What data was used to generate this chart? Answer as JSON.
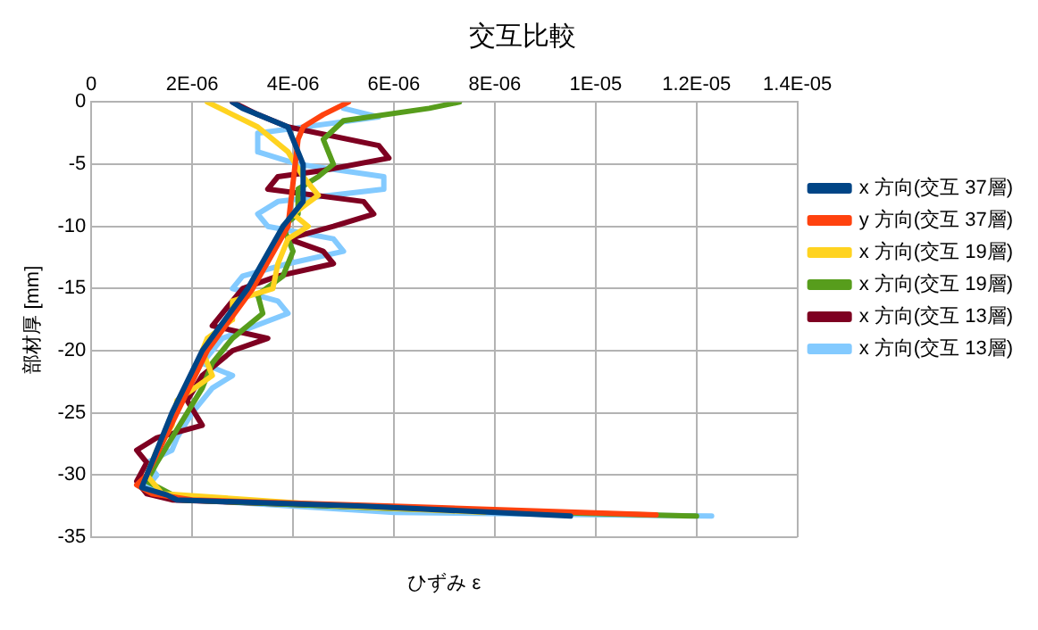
{
  "chart_data": {
    "type": "line",
    "title": "交互比較",
    "xlabel": "ひずみ ε",
    "ylabel": "部材厚 [mm]",
    "xlim": [
      0,
      1.4e-05
    ],
    "xticks": [
      0,
      {
        "value": 2e-06,
        "label": "2E-06"
      },
      {
        "value": 4e-06,
        "label": "4E-06"
      },
      {
        "value": 6e-06,
        "label": "6E-06"
      },
      {
        "value": 8e-06,
        "label": "8E-06"
      },
      {
        "value": 1e-05,
        "label": "1E-05"
      },
      {
        "value": 1.2e-05,
        "label": "1.2E-05"
      },
      {
        "value": 1.4e-05,
        "label": "1.4E-05"
      }
    ],
    "ylim": [
      -35,
      0
    ],
    "yticks": [
      -35,
      -30,
      -25,
      -20,
      -15,
      -10,
      -5,
      0
    ],
    "grid": true,
    "legend": "right",
    "marker": "none",
    "line_style": "solid",
    "series": [
      {
        "name": "x 方向(交互 37層)",
        "color": "#004586",
        "x": [
          2.8e-06,
          3e-06,
          3.9e-06,
          4.2e-06,
          4.2e-06,
          3.8e-06,
          3.1e-06,
          2.2e-06,
          1.6e-06,
          1.1e-06,
          1e-06,
          1.5e-06,
          1.7e-06,
          5.4e-06,
          9.5e-06
        ],
        "values": [
          0,
          -0.5,
          -2,
          -5,
          -8,
          -10,
          -15,
          -20,
          -25,
          -30,
          -31,
          -31.6,
          -32,
          -32.5,
          -33.3
        ]
      },
      {
        "name": "y 方向(交互 37層)",
        "color": "#ff420e",
        "x": [
          5.1e-06,
          4.6e-06,
          4.2e-06,
          4.1e-06,
          3.9e-06,
          3.2e-06,
          2.3e-06,
          1.7e-06,
          1.1e-06,
          9e-07,
          1.2e-06,
          2e-06,
          6e-06,
          1.12e-05
        ],
        "values": [
          0,
          -1,
          -2,
          -3,
          -10,
          -15,
          -20,
          -25,
          -30,
          -30.8,
          -31.5,
          -32,
          -32.5,
          -33.2
        ]
      },
      {
        "name": "x 方向(交互 19層)",
        "color": "#ffd320",
        "x": [
          2.3e-06,
          2.8e-06,
          3.3e-06,
          3.9e-06,
          4.2e-06,
          4.5e-06,
          4e-06,
          4.3e-06,
          3.9e-06,
          3.7e-06,
          3.6e-06,
          2.8e-06,
          2.8e-06,
          2.3e-06,
          2.2e-06,
          2.4e-06,
          1.7e-06,
          1.6e-06,
          1.3e-06,
          1.1e-06,
          1.4e-06,
          5e-06,
          7.8e-06
        ],
        "values": [
          0,
          -1,
          -2,
          -4,
          -6,
          -7.5,
          -9,
          -10,
          -11,
          -13,
          -15,
          -16,
          -17.5,
          -19,
          -20,
          -22,
          -24,
          -26,
          -28,
          -30,
          -31.5,
          -32.5,
          -33
        ]
      },
      {
        "name": "x 方向(交互 19層)",
        "color": "#579d1c",
        "x": [
          7.3e-06,
          6.7e-06,
          5e-06,
          4.6e-06,
          4.8e-06,
          4.5e-06,
          4.1e-06,
          4.1e-06,
          3.8e-06,
          4e-06,
          3.8e-06,
          3.3e-06,
          3.4e-06,
          2.8e-06,
          2.4e-06,
          2.2e-06,
          1.9e-06,
          1.6e-06,
          1.3e-06,
          1.1e-06,
          1.8e-06,
          6e-06,
          1.2e-05
        ],
        "values": [
          0,
          -0.5,
          -1.5,
          -3,
          -5,
          -6,
          -7,
          -9,
          -10,
          -12,
          -14,
          -15.5,
          -17,
          -19,
          -21,
          -23,
          -25,
          -27,
          -29,
          -30.5,
          -32,
          -32.7,
          -33.3
        ]
      },
      {
        "name": "x 方向(交互 13層)",
        "color": "#7e0021",
        "x": [
          2.8e-06,
          3.3e-06,
          3.9e-06,
          5.7e-06,
          5.9e-06,
          4.6e-06,
          3.7e-06,
          3.5e-06,
          5.4e-06,
          5.6e-06,
          4.8e-06,
          3.9e-06,
          4.6e-06,
          4.8e-06,
          3.7e-06,
          3e-06,
          2.6e-06,
          2.4e-06,
          3.5e-06,
          2.8e-06,
          2.2e-06,
          1.9e-06,
          2.2e-06,
          1.3e-06,
          9e-07,
          1.1e-06,
          9e-07,
          1.1e-06,
          1.6e-06,
          5e-06,
          8.5e-06
        ],
        "values": [
          0,
          -1,
          -2,
          -3.5,
          -4.5,
          -5.5,
          -6,
          -7,
          -8,
          -9,
          -10,
          -11,
          -12,
          -13,
          -14,
          -15,
          -17,
          -18,
          -19,
          -20,
          -22,
          -24,
          -26,
          -27,
          -28,
          -29,
          -30.5,
          -31.5,
          -32,
          -32.5,
          -33
        ]
      },
      {
        "name": "x 方向(交互 13層)",
        "color": "#83caff",
        "x": [
          5e-06,
          5.7e-06,
          3.3e-06,
          3.3e-06,
          4.1e-06,
          5.8e-06,
          5.8e-06,
          3.7e-06,
          3.3e-06,
          3.5e-06,
          4.8e-06,
          5e-06,
          3.9e-06,
          3e-06,
          2.8e-06,
          3.7e-06,
          3.9e-06,
          2.6e-06,
          2.2e-06,
          2.8e-06,
          2.4e-06,
          2e-06,
          1.7e-06,
          1.6e-06,
          1.1e-06,
          1.3e-06,
          1.1e-06,
          2e-06,
          6e-06,
          1.23e-05
        ],
        "values": [
          -0.5,
          -1.2,
          -2.5,
          -4,
          -5,
          -6,
          -7,
          -8,
          -9,
          -10,
          -11,
          -12,
          -13,
          -14,
          -15,
          -16,
          -17,
          -19,
          -21,
          -22,
          -23,
          -25,
          -27,
          -28,
          -29,
          -30,
          -31,
          -32,
          -33,
          -33.3
        ]
      }
    ]
  }
}
